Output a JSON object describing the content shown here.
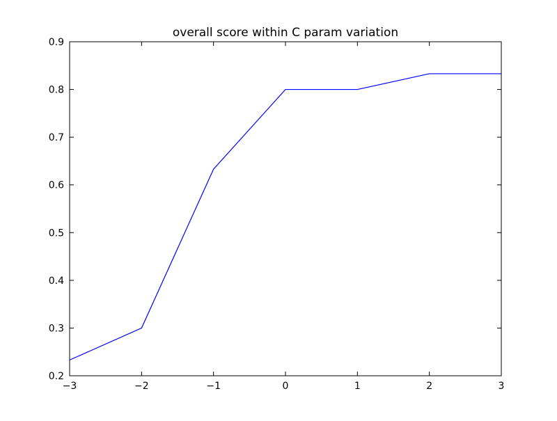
{
  "chart_data": {
    "type": "line",
    "title": "overall score within C param variation",
    "xlabel": "",
    "ylabel": "",
    "xlim": [
      -3,
      3
    ],
    "ylim": [
      0.2,
      0.9
    ],
    "x_ticks": [
      -3,
      -2,
      -1,
      0,
      1,
      2,
      3
    ],
    "x_tick_labels": [
      "−3",
      "−2",
      "−1",
      "0",
      "1",
      "2",
      "3"
    ],
    "y_ticks": [
      0.2,
      0.3,
      0.4,
      0.5,
      0.6,
      0.7,
      0.8,
      0.9
    ],
    "y_tick_labels": [
      "0.2",
      "0.3",
      "0.4",
      "0.5",
      "0.6",
      "0.7",
      "0.8",
      "0.9"
    ],
    "grid": false,
    "series": [
      {
        "color": "#0000ff",
        "x": [
          -3,
          -2,
          -1,
          0,
          1,
          2,
          3
        ],
        "y": [
          0.233,
          0.3,
          0.633,
          0.8,
          0.8,
          0.833,
          0.833
        ]
      }
    ]
  }
}
